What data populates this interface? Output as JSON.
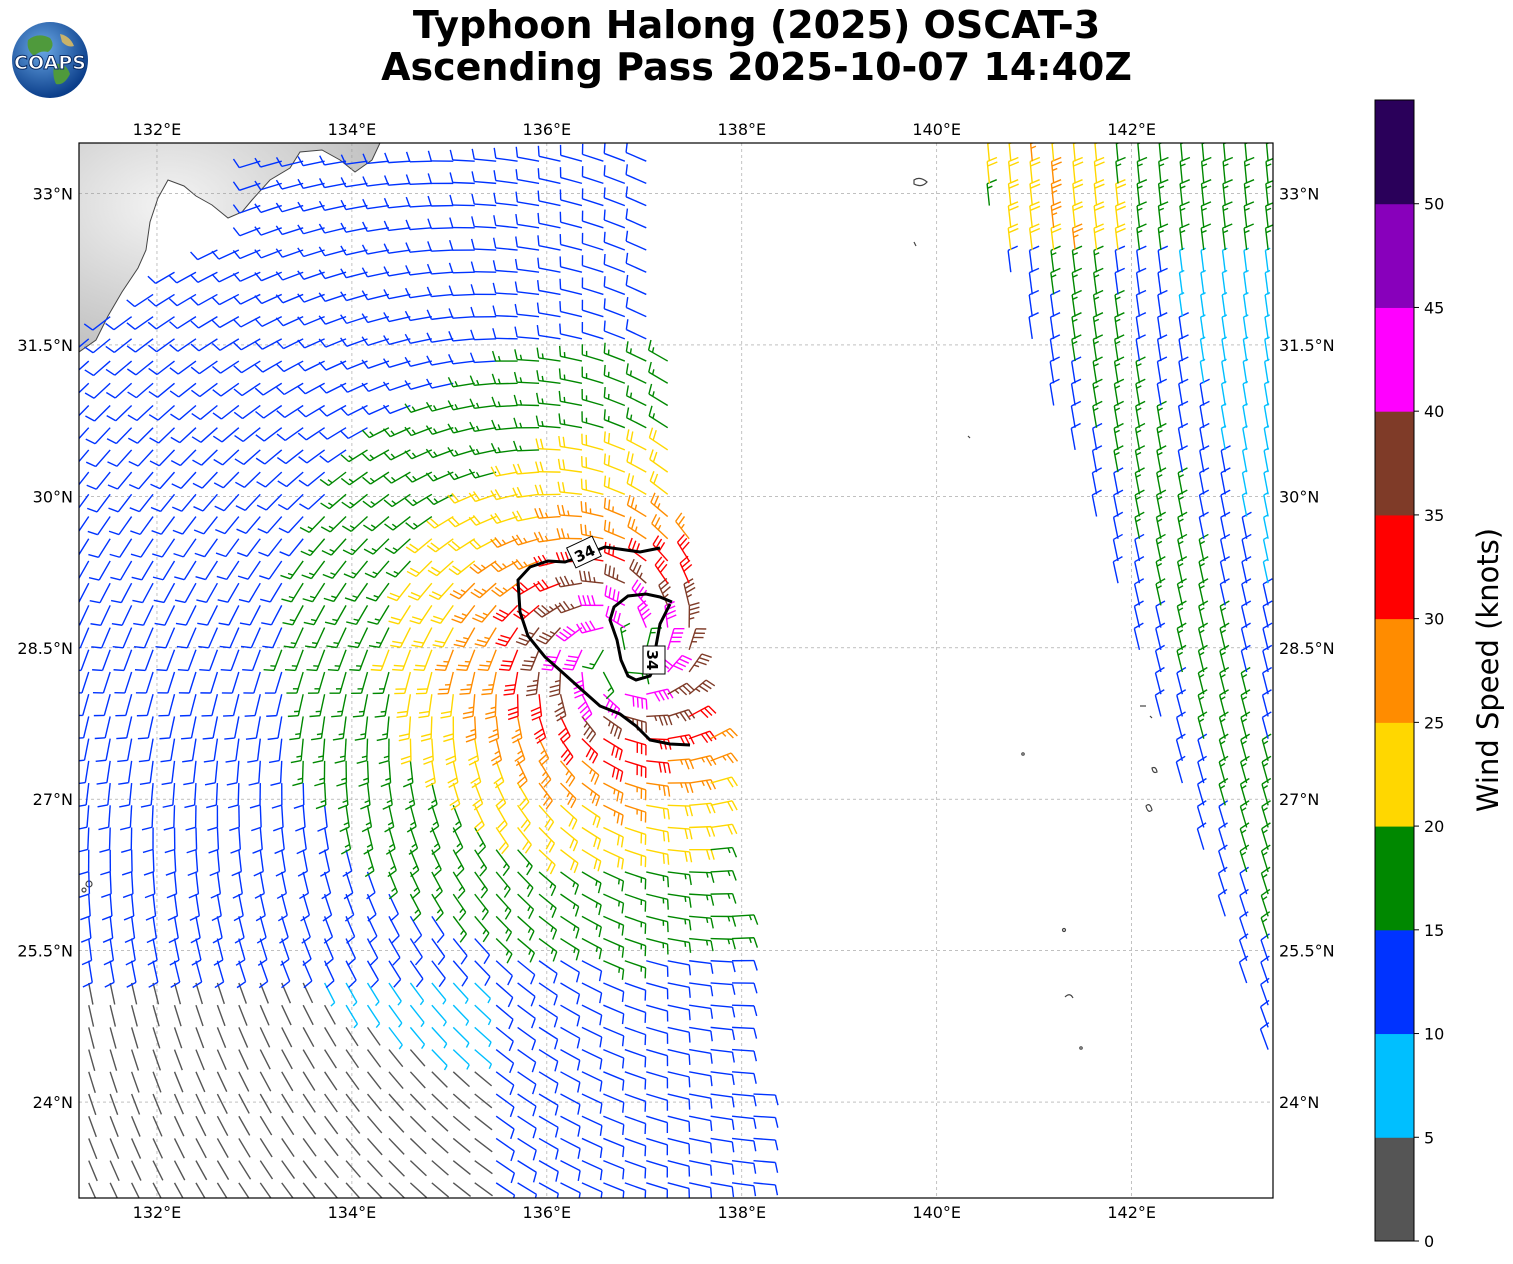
{
  "title": {
    "line1": "Typhoon Halong (2025) OSCAT-3",
    "line2": "Ascending Pass 2025-10-07 14:40Z"
  },
  "logo": {
    "text": "COAPS",
    "icon": "globe-logo-icon"
  },
  "map": {
    "lon_range": [
      131.2,
      143.45
    ],
    "lat_range": [
      23.05,
      33.5
    ],
    "lon_ticks": [
      "132°E",
      "134°E",
      "136°E",
      "138°E",
      "140°E",
      "142°E"
    ],
    "lon_tick_values": [
      132,
      134,
      136,
      138,
      140,
      142
    ],
    "lat_ticks": [
      "33°N",
      "31.5°N",
      "30°N",
      "28.5°N",
      "27°N",
      "25.5°N",
      "24°N"
    ],
    "lat_tick_values": [
      33,
      31.5,
      30,
      28.5,
      27,
      25.5,
      24
    ],
    "gridlines": true,
    "contour_label": "34",
    "storm_center": {
      "lon": 136.75,
      "lat": 28.45
    }
  },
  "colorbar": {
    "label": "Wind Speed (knots)",
    "ticks": [
      "0",
      "5",
      "10",
      "15",
      "20",
      "25",
      "30",
      "35",
      "40",
      "45",
      "50"
    ],
    "colors": [
      "#555555",
      "#00bfff",
      "#0033ff",
      "#008800",
      "#ffd700",
      "#ff8c00",
      "#ff0000",
      "#7f3b28",
      "#ff00ff",
      "#8800bb",
      "#2a005a"
    ]
  }
}
